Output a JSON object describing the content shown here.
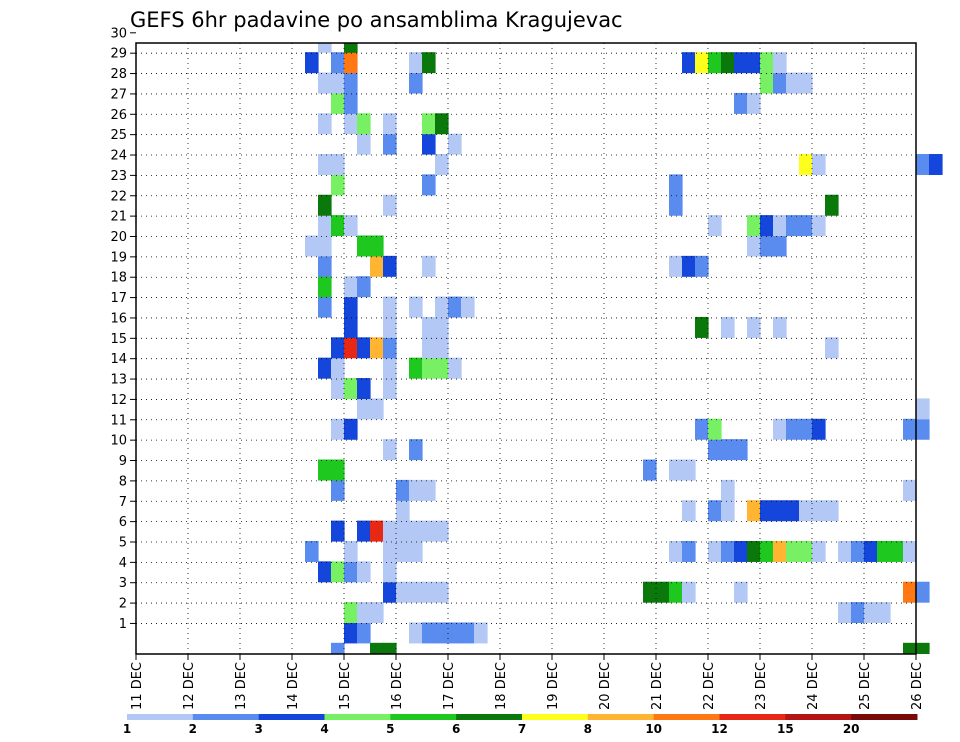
{
  "chart_data": {
    "type": "heatmap",
    "title": "GEFS 6hr padavine po ansamblima Kragujevac",
    "x_ticks": [
      "11 DEC",
      "12 DEC",
      "13 DEC",
      "14 DEC",
      "15 DEC",
      "16 DEC",
      "17 DEC",
      "18 DEC",
      "19 DEC",
      "20 DEC",
      "21 DEC",
      "22 DEC",
      "23 DEC",
      "24 DEC",
      "25 DEC",
      "26 DEC"
    ],
    "y_ticks": [
      "1",
      "2",
      "3",
      "4",
      "5",
      "6",
      "7",
      "8",
      "9",
      "10",
      "11",
      "12",
      "13",
      "14",
      "15",
      "16",
      "17",
      "18",
      "19",
      "20",
      "21",
      "22",
      "23",
      "24",
      "25",
      "26",
      "27",
      "28",
      "29",
      "30"
    ],
    "x_range_days": [
      "11 DEC",
      "26 DEC"
    ],
    "y_range": [
      0,
      30
    ],
    "grid": true,
    "legend": {
      "position": "bottom",
      "levels": [
        "1",
        "2",
        "3",
        "4",
        "5",
        "6",
        "7",
        "8",
        "10",
        "12",
        "15",
        "20"
      ],
      "colors": [
        "#b4c8f5",
        "#5a8cf0",
        "#1446dc",
        "#78f064",
        "#1ec81e",
        "#0a780a",
        "#ffff1e",
        "#ffb432",
        "#ff7814",
        "#e62814",
        "#b41414",
        "#780a0a"
      ]
    },
    "cells_note": "each cell: [member, day offset from 11 DEC 00z in days, color index]",
    "cells": [
      [
        0,
        3.75,
        2
      ],
      [
        0,
        4.5,
        6
      ],
      [
        0,
        4.75,
        6
      ],
      [
        0,
        14.75,
        6
      ],
      [
        0,
        15.0,
        6
      ],
      [
        1,
        4.0,
        3
      ],
      [
        1,
        4.25,
        2
      ],
      [
        1,
        5.25,
        1
      ],
      [
        1,
        5.5,
        2
      ],
      [
        1,
        5.75,
        2
      ],
      [
        1,
        6.0,
        2
      ],
      [
        1,
        6.25,
        2
      ],
      [
        1,
        6.5,
        1
      ],
      [
        2,
        4.0,
        4
      ],
      [
        2,
        4.25,
        1
      ],
      [
        2,
        4.5,
        1
      ],
      [
        2,
        13.5,
        1
      ],
      [
        2,
        13.75,
        2
      ],
      [
        2,
        14.0,
        1
      ],
      [
        2,
        14.25,
        1
      ],
      [
        3,
        4.75,
        3
      ],
      [
        3,
        5.0,
        1
      ],
      [
        3,
        5.25,
        1
      ],
      [
        3,
        5.5,
        1
      ],
      [
        3,
        5.75,
        1
      ],
      [
        3,
        9.75,
        6
      ],
      [
        3,
        10.0,
        6
      ],
      [
        3,
        10.25,
        5
      ],
      [
        3,
        10.5,
        1
      ],
      [
        3,
        11.5,
        1
      ],
      [
        3,
        14.75,
        9
      ],
      [
        3,
        15.0,
        2
      ],
      [
        4,
        3.5,
        3
      ],
      [
        4,
        3.75,
        4
      ],
      [
        4,
        4.0,
        2
      ],
      [
        4,
        4.25,
        1
      ],
      [
        4,
        4.75,
        1
      ],
      [
        5,
        3.25,
        2
      ],
      [
        5,
        4.0,
        1
      ],
      [
        5,
        4.75,
        1
      ],
      [
        5,
        5.0,
        1
      ],
      [
        5,
        5.25,
        1
      ],
      [
        5,
        10.25,
        1
      ],
      [
        5,
        10.5,
        2
      ],
      [
        5,
        11.0,
        1
      ],
      [
        5,
        11.25,
        2
      ],
      [
        5,
        11.5,
        3
      ],
      [
        5,
        11.75,
        6
      ],
      [
        5,
        12.0,
        5
      ],
      [
        5,
        12.25,
        8
      ],
      [
        5,
        12.5,
        4
      ],
      [
        5,
        12.75,
        4
      ],
      [
        5,
        13.0,
        1
      ],
      [
        5,
        13.5,
        1
      ],
      [
        5,
        13.75,
        2
      ],
      [
        5,
        14.0,
        3
      ],
      [
        5,
        14.25,
        5
      ],
      [
        5,
        14.5,
        5
      ],
      [
        5,
        14.75,
        1
      ],
      [
        6,
        3.75,
        3
      ],
      [
        6,
        4.25,
        3
      ],
      [
        6,
        4.5,
        10
      ],
      [
        6,
        4.75,
        1
      ],
      [
        6,
        5.0,
        1
      ],
      [
        6,
        5.25,
        1
      ],
      [
        6,
        5.5,
        1
      ],
      [
        6,
        5.75,
        1
      ],
      [
        7,
        5.0,
        1
      ],
      [
        7,
        10.5,
        1
      ],
      [
        7,
        11.0,
        2
      ],
      [
        7,
        11.25,
        1
      ],
      [
        7,
        11.75,
        8
      ],
      [
        7,
        12.0,
        3
      ],
      [
        7,
        12.25,
        3
      ],
      [
        7,
        12.5,
        3
      ],
      [
        7,
        12.75,
        1
      ],
      [
        7,
        13.0,
        1
      ],
      [
        7,
        13.25,
        1
      ],
      [
        8,
        3.75,
        2
      ],
      [
        8,
        5.0,
        2
      ],
      [
        8,
        5.25,
        1
      ],
      [
        8,
        5.5,
        1
      ],
      [
        8,
        11.25,
        1
      ],
      [
        8,
        14.75,
        1
      ],
      [
        9,
        3.5,
        5
      ],
      [
        9,
        3.75,
        5
      ],
      [
        9,
        9.75,
        2
      ],
      [
        9,
        10.25,
        1
      ],
      [
        9,
        10.5,
        1
      ],
      [
        10,
        4.75,
        1
      ],
      [
        10,
        5.25,
        2
      ],
      [
        10,
        11.0,
        2
      ],
      [
        10,
        11.25,
        2
      ],
      [
        10,
        11.5,
        2
      ],
      [
        11,
        3.75,
        1
      ],
      [
        11,
        4.0,
        3
      ],
      [
        11,
        10.75,
        2
      ],
      [
        11,
        11.0,
        4
      ],
      [
        11,
        12.25,
        1
      ],
      [
        11,
        12.5,
        2
      ],
      [
        11,
        12.75,
        2
      ],
      [
        11,
        13.0,
        3
      ],
      [
        11,
        14.75,
        2
      ],
      [
        11,
        15.0,
        2
      ],
      [
        12,
        4.25,
        1
      ],
      [
        12,
        4.5,
        1
      ],
      [
        12,
        15.0,
        1
      ],
      [
        13,
        3.75,
        1
      ],
      [
        13,
        4.0,
        4
      ],
      [
        13,
        4.25,
        3
      ],
      [
        13,
        4.75,
        1
      ],
      [
        14,
        3.5,
        3
      ],
      [
        14,
        3.75,
        1
      ],
      [
        14,
        4.75,
        1
      ],
      [
        14,
        5.25,
        5
      ],
      [
        14,
        5.5,
        4
      ],
      [
        14,
        5.75,
        4
      ],
      [
        14,
        6.0,
        1
      ],
      [
        15,
        3.75,
        3
      ],
      [
        15,
        4.0,
        10
      ],
      [
        15,
        4.25,
        3
      ],
      [
        15,
        4.5,
        8
      ],
      [
        15,
        4.75,
        2
      ],
      [
        15,
        5.5,
        1
      ],
      [
        15,
        5.75,
        1
      ],
      [
        15,
        13.25,
        1
      ],
      [
        16,
        4.0,
        3
      ],
      [
        16,
        4.75,
        1
      ],
      [
        16,
        5.5,
        1
      ],
      [
        16,
        5.75,
        1
      ],
      [
        16,
        10.75,
        6
      ],
      [
        16,
        11.25,
        1
      ],
      [
        16,
        11.75,
        1
      ],
      [
        16,
        12.25,
        1
      ],
      [
        17,
        3.5,
        2
      ],
      [
        17,
        4.0,
        3
      ],
      [
        17,
        4.75,
        1
      ],
      [
        17,
        5.25,
        1
      ],
      [
        17,
        5.75,
        1
      ],
      [
        17,
        6.0,
        2
      ],
      [
        17,
        6.25,
        1
      ],
      [
        18,
        3.5,
        5
      ],
      [
        18,
        4.0,
        1
      ],
      [
        18,
        4.25,
        2
      ],
      [
        19,
        3.5,
        2
      ],
      [
        19,
        4.5,
        8
      ],
      [
        19,
        4.75,
        3
      ],
      [
        19,
        5.5,
        1
      ],
      [
        19,
        10.25,
        1
      ],
      [
        19,
        10.5,
        3
      ],
      [
        19,
        10.75,
        2
      ],
      [
        20,
        3.25,
        1
      ],
      [
        20,
        3.5,
        1
      ],
      [
        20,
        4.25,
        5
      ],
      [
        20,
        4.5,
        5
      ],
      [
        20,
        11.75,
        1
      ],
      [
        20,
        12.0,
        2
      ],
      [
        20,
        12.25,
        2
      ],
      [
        21,
        3.5,
        1
      ],
      [
        21,
        3.75,
        5
      ],
      [
        21,
        4.0,
        1
      ],
      [
        21,
        11.0,
        1
      ],
      [
        21,
        11.75,
        4
      ],
      [
        21,
        12.0,
        3
      ],
      [
        21,
        12.25,
        1
      ],
      [
        21,
        12.5,
        2
      ],
      [
        21,
        12.75,
        2
      ],
      [
        21,
        13.0,
        1
      ],
      [
        22,
        3.5,
        6
      ],
      [
        22,
        4.75,
        1
      ],
      [
        22,
        10.25,
        2
      ],
      [
        22,
        13.25,
        6
      ],
      [
        23,
        3.75,
        4
      ],
      [
        23,
        5.5,
        2
      ],
      [
        23,
        10.25,
        2
      ],
      [
        24,
        3.5,
        1
      ],
      [
        24,
        3.75,
        1
      ],
      [
        24,
        5.75,
        1
      ],
      [
        24,
        12.75,
        7
      ],
      [
        24,
        13.0,
        1
      ],
      [
        24,
        15.0,
        2
      ],
      [
        24,
        15.25,
        3
      ],
      [
        25,
        4.25,
        1
      ],
      [
        25,
        4.75,
        2
      ],
      [
        25,
        5.5,
        3
      ],
      [
        25,
        6.0,
        1
      ],
      [
        26,
        3.5,
        1
      ],
      [
        26,
        4.0,
        1
      ],
      [
        26,
        4.25,
        4
      ],
      [
        26,
        4.75,
        1
      ],
      [
        26,
        5.5,
        4
      ],
      [
        26,
        5.75,
        6
      ],
      [
        27,
        3.75,
        4
      ],
      [
        27,
        4.0,
        2
      ],
      [
        27,
        11.5,
        2
      ],
      [
        27,
        11.75,
        1
      ],
      [
        28,
        3.5,
        1
      ],
      [
        28,
        3.75,
        1
      ],
      [
        28,
        4.0,
        2
      ],
      [
        28,
        5.25,
        2
      ],
      [
        28,
        12.0,
        4
      ],
      [
        28,
        12.25,
        2
      ],
      [
        28,
        12.5,
        1
      ],
      [
        28,
        12.75,
        1
      ],
      [
        29,
        3.25,
        3
      ],
      [
        29,
        3.75,
        2
      ],
      [
        29,
        4.0,
        9
      ],
      [
        29,
        5.25,
        1
      ],
      [
        29,
        5.5,
        6
      ],
      [
        29,
        10.5,
        3
      ],
      [
        29,
        10.75,
        7
      ],
      [
        29,
        11.0,
        5
      ],
      [
        29,
        11.25,
        6
      ],
      [
        29,
        11.5,
        3
      ],
      [
        29,
        11.75,
        3
      ],
      [
        29,
        12.0,
        4
      ],
      [
        29,
        12.25,
        1
      ],
      [
        30,
        3.5,
        1
      ],
      [
        30,
        4.0,
        6
      ]
    ]
  }
}
